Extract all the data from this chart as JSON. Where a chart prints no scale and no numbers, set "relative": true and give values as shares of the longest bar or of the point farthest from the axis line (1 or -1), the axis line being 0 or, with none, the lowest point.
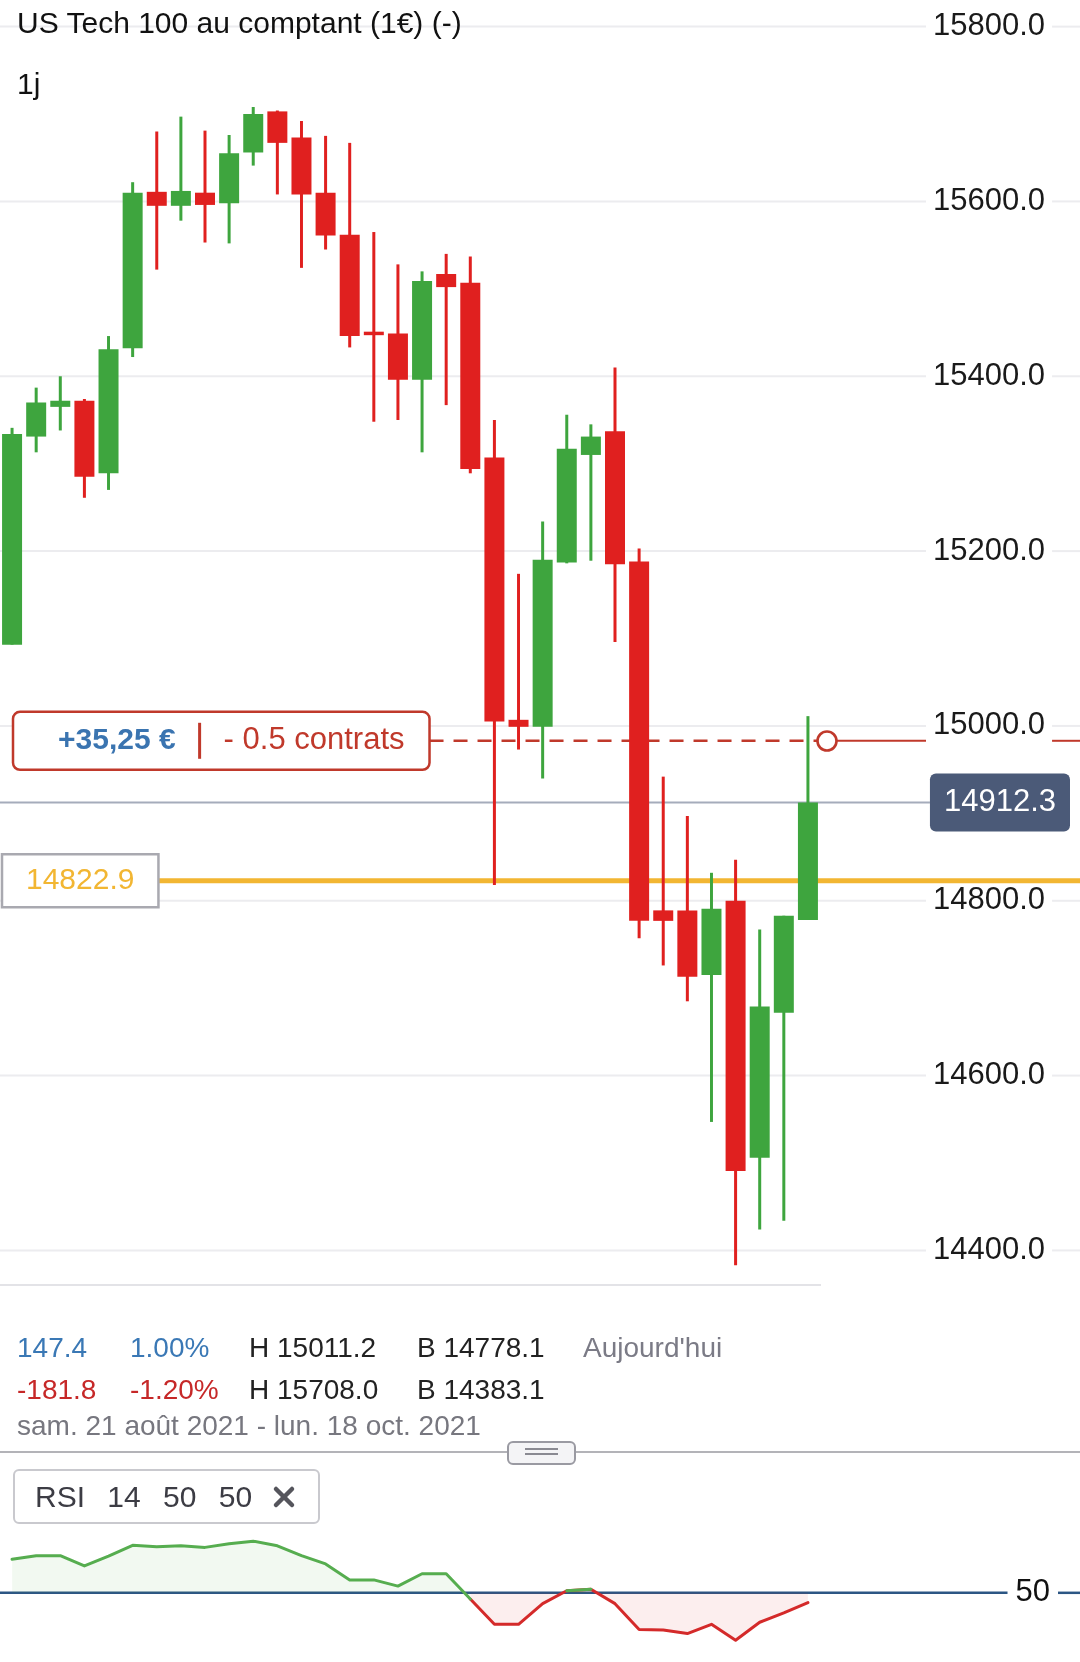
{
  "chart_data": [
    {
      "type": "candlestick",
      "title": "US Tech 100 au comptant (1€) (-)",
      "subtitle": "1j",
      "categories": [
        null,
        null,
        null,
        null,
        null,
        null,
        null,
        null,
        null,
        null,
        null,
        null,
        null,
        null,
        null,
        null,
        null,
        null,
        null,
        null,
        null,
        null,
        null,
        null,
        null,
        null,
        null,
        null,
        null,
        null,
        null,
        null,
        null,
        null
      ],
      "ohlc": [
        [
          15093,
          15341,
          15093,
          15334
        ],
        [
          15331,
          15387,
          15313,
          15370
        ],
        [
          15365,
          15400,
          15338,
          15372
        ],
        [
          15372,
          15374,
          15261,
          15285
        ],
        [
          15289,
          15446,
          15270,
          15431
        ],
        [
          15432,
          15622,
          15422,
          15610
        ],
        [
          15611,
          15680,
          15522,
          15595
        ],
        [
          15595,
          15697,
          15578,
          15612
        ],
        [
          15610,
          15681,
          15553,
          15596
        ],
        [
          15598,
          15676,
          15552,
          15655
        ],
        [
          15656,
          15708.0,
          15641,
          15700
        ],
        [
          15703,
          15704,
          15608,
          15667
        ],
        [
          15673,
          15692,
          15524,
          15608
        ],
        [
          15610,
          15675,
          15545,
          15561
        ],
        [
          15562,
          15667,
          15433,
          15446
        ],
        [
          15451,
          15565,
          15348,
          15447
        ],
        [
          15449,
          15528,
          15350,
          15396
        ],
        [
          15396,
          15520,
          15313,
          15509
        ],
        [
          15517,
          15540,
          15367,
          15502
        ],
        [
          15507,
          15537,
          15289,
          15294
        ],
        [
          15307,
          15350,
          14818,
          15005
        ],
        [
          15007,
          15174,
          14973,
          14999
        ],
        [
          14999,
          15234,
          14940,
          15190
        ],
        [
          15187,
          15356,
          15186,
          15317
        ],
        [
          15310,
          15345,
          15189,
          15331
        ],
        [
          15337,
          15410,
          15096,
          15185
        ],
        [
          15188,
          15203,
          14757,
          14777
        ],
        [
          14789,
          14942,
          14726,
          14777
        ],
        [
          14789,
          14897,
          14685,
          14713
        ],
        [
          14715,
          14832,
          14547,
          14791
        ],
        [
          14800,
          14847,
          14383.1,
          14491
        ],
        [
          14506,
          14767,
          14424,
          14679
        ],
        [
          14672,
          14783,
          14434,
          14783
        ],
        [
          14778.1,
          15011.2,
          14778.1,
          14912.3
        ]
      ],
      "colors": [
        "#3ea53e",
        "#3ea53e",
        "#3ea53e",
        "#e0201f",
        "#3ea53e",
        "#3ea53e",
        "#e0201f",
        "#3ea53e",
        "#e0201f",
        "#3ea53e",
        "#3ea53e",
        "#e0201f",
        "#e0201f",
        "#e0201f",
        "#e0201f",
        "#e0201f",
        "#e0201f",
        "#3ea53e",
        "#e0201f",
        "#e0201f",
        "#e0201f",
        "#e0201f",
        "#3ea53e",
        "#3ea53e",
        "#3ea53e",
        "#e0201f",
        "#e0201f",
        "#e0201f",
        "#e0201f",
        "#3ea53e",
        "#e0201f",
        "#3ea53e",
        "#3ea53e",
        "#3ea53e"
      ],
      "ylim": [
        14360,
        15800
      ],
      "yticks": [
        {
          "value": 14400,
          "label": "14400.0"
        },
        {
          "value": 14600,
          "label": "14600.0"
        },
        {
          "value": 14800,
          "label": "14800.0"
        },
        {
          "value": 15000,
          "label": "15000.0"
        },
        {
          "value": 15200,
          "label": "15200.0"
        },
        {
          "value": 15400,
          "label": "15400.0"
        },
        {
          "value": 15600,
          "label": "15600.0"
        },
        {
          "value": 15800,
          "label": "15800.0"
        }
      ],
      "grid": "y",
      "tick_labels": "y",
      "ref_lines": [
        {
          "axis": "y",
          "value": 14983,
          "label": "- 0.5 contrats",
          "color": "#c0392b",
          "line_style": "dashed"
        },
        {
          "axis": "y",
          "value": 14912.3,
          "label": "14912.3",
          "color": "#4b5a78"
        },
        {
          "axis": "y",
          "value": 14822.9,
          "label": "14822.9",
          "color": "#f2b632"
        }
      ],
      "annotations": [
        "+35,25 €",
        "147.4",
        "1.00%",
        "H 15011.2",
        "B 14778.1",
        "Aujourd'hui",
        "-181.8",
        "-1.20%",
        "H 15708.0",
        "B 14383.1",
        "sam. 21 août 2021 - lun. 18 oct. 2021"
      ]
    },
    {
      "type": "area",
      "title": "RSI 14 50 50",
      "relative": true,
      "categories": [
        null,
        null,
        null,
        null,
        null,
        null,
        null,
        null,
        null,
        null,
        null,
        null,
        null,
        null,
        null,
        null,
        null,
        null,
        null,
        null,
        null,
        null,
        null,
        null,
        null,
        null,
        null,
        null,
        null,
        null,
        null,
        null,
        null,
        null
      ],
      "series": [
        {
          "color": "#56ad4f",
          "values": [
            0.65,
            0.72,
            0.72,
            0.52,
            0.71,
            0.92,
            0.89,
            0.91,
            0.88,
            0.95,
            1,
            0.91,
            0.72,
            0.56,
            0.25,
            0.25,
            0.13,
            0.37,
            0.37,
            -0.12,
            null,
            null,
            null,
            0.04,
            0.07,
            null,
            null,
            null,
            null,
            null,
            null,
            null,
            null,
            null
          ]
        },
        {
          "color": "#d42a2a",
          "values": [
            null,
            null,
            null,
            null,
            null,
            null,
            null,
            null,
            null,
            null,
            null,
            null,
            null,
            null,
            null,
            null,
            null,
            null,
            null,
            -0.12,
            -0.61,
            -0.61,
            -0.21,
            0.04,
            0.07,
            -0.21,
            -0.71,
            -0.72,
            -0.79,
            -0.61,
            -0.92,
            -0.57,
            -0.39,
            -0.19
          ]
        }
      ],
      "tick_labels": false,
      "ref_lines": [
        {
          "axis": "y",
          "value": 0,
          "color": "#2c5684"
        }
      ],
      "annotations": [
        "50"
      ]
    }
  ]
}
